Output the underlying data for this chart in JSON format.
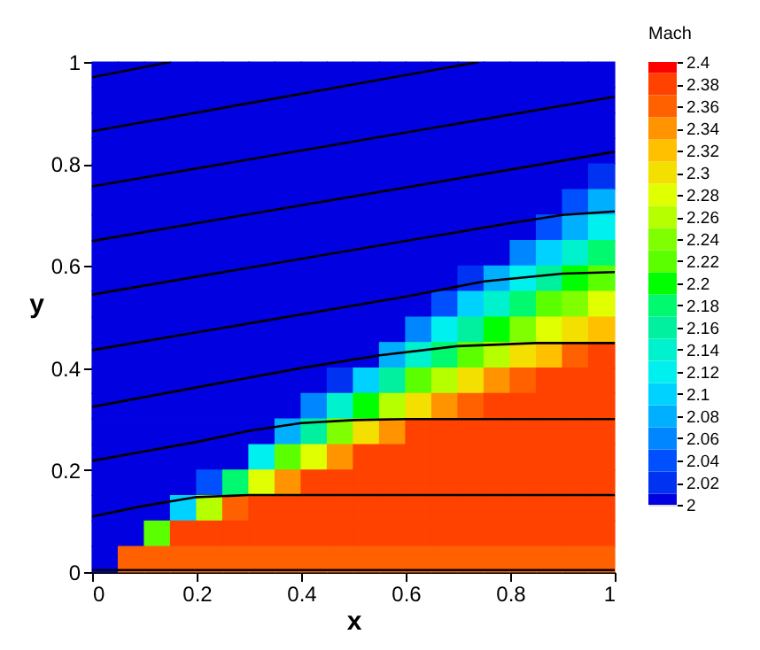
{
  "chart_data": {
    "type": "heatmap",
    "xlabel": "x",
    "ylabel": "y",
    "clabel": "Mach",
    "xlim": [
      0,
      1
    ],
    "ylim": [
      0,
      1
    ],
    "xticks": [
      0,
      0.2,
      0.4,
      0.6,
      0.8,
      1
    ],
    "yticks": [
      0,
      0.2,
      0.4,
      0.6,
      0.8,
      1
    ],
    "clim": [
      2,
      2.4
    ],
    "cticks": [
      2,
      2.02,
      2.04,
      2.06,
      2.08,
      2.1,
      2.12,
      2.14,
      2.16,
      2.18,
      2.2,
      2.22,
      2.24,
      2.26,
      2.28,
      2.3,
      2.32,
      2.34,
      2.36,
      2.38,
      2.4
    ],
    "grid": false,
    "cells": [
      [
        2.0,
        2.0,
        2.0,
        2.0,
        2.0,
        2.0,
        2.0,
        2.0,
        2.0,
        2.0,
        2.0,
        2.0,
        2.0,
        2.0,
        2.0,
        2.0,
        2.0,
        2.0,
        2.0,
        2.0
      ],
      [
        2.0,
        2.0,
        2.0,
        2.0,
        2.0,
        2.0,
        2.0,
        2.0,
        2.0,
        2.0,
        2.0,
        2.0,
        2.0,
        2.0,
        2.0,
        2.0,
        2.0,
        2.0,
        2.0,
        2.0
      ],
      [
        2.0,
        2.0,
        2.0,
        2.0,
        2.0,
        2.0,
        2.0,
        2.0,
        2.0,
        2.0,
        2.0,
        2.0,
        2.0,
        2.0,
        2.0,
        2.0,
        2.0,
        2.0,
        2.0,
        2.0
      ],
      [
        2.0,
        2.0,
        2.0,
        2.0,
        2.0,
        2.0,
        2.0,
        2.0,
        2.0,
        2.0,
        2.0,
        2.0,
        2.0,
        2.0,
        2.0,
        2.0,
        2.0,
        2.0,
        2.0,
        2.0
      ],
      [
        2.0,
        2.0,
        2.0,
        2.0,
        2.0,
        2.0,
        2.0,
        2.0,
        2.0,
        2.0,
        2.0,
        2.0,
        2.0,
        2.0,
        2.0,
        2.0,
        2.0,
        2.0,
        2.0,
        2.02
      ],
      [
        2.0,
        2.0,
        2.0,
        2.0,
        2.0,
        2.0,
        2.0,
        2.0,
        2.0,
        2.0,
        2.0,
        2.0,
        2.0,
        2.0,
        2.0,
        2.0,
        2.0,
        2.0,
        2.04,
        2.08
      ],
      [
        2.0,
        2.0,
        2.0,
        2.0,
        2.0,
        2.0,
        2.0,
        2.0,
        2.0,
        2.0,
        2.0,
        2.0,
        2.0,
        2.0,
        2.0,
        2.0,
        2.0,
        2.04,
        2.08,
        2.12
      ],
      [
        2.0,
        2.0,
        2.0,
        2.0,
        2.0,
        2.0,
        2.0,
        2.0,
        2.0,
        2.0,
        2.0,
        2.0,
        2.0,
        2.0,
        2.0,
        2.0,
        2.06,
        2.1,
        2.14,
        2.18
      ],
      [
        2.0,
        2.0,
        2.0,
        2.0,
        2.0,
        2.0,
        2.0,
        2.0,
        2.0,
        2.0,
        2.0,
        2.0,
        2.0,
        2.0,
        2.02,
        2.08,
        2.12,
        2.16,
        2.2,
        2.22
      ],
      [
        2.0,
        2.0,
        2.0,
        2.0,
        2.0,
        2.0,
        2.0,
        2.0,
        2.0,
        2.0,
        2.0,
        2.0,
        2.0,
        2.04,
        2.1,
        2.14,
        2.18,
        2.22,
        2.24,
        2.28
      ],
      [
        2.0,
        2.0,
        2.0,
        2.0,
        2.0,
        2.0,
        2.0,
        2.0,
        2.0,
        2.0,
        2.0,
        2.0,
        2.06,
        2.12,
        2.16,
        2.2,
        2.24,
        2.28,
        2.3,
        2.32
      ],
      [
        2.0,
        2.0,
        2.0,
        2.0,
        2.0,
        2.0,
        2.0,
        2.0,
        2.0,
        2.0,
        2.0,
        2.08,
        2.14,
        2.18,
        2.22,
        2.26,
        2.3,
        2.32,
        2.36,
        2.38
      ],
      [
        2.0,
        2.0,
        2.0,
        2.0,
        2.0,
        2.0,
        2.0,
        2.0,
        2.0,
        2.02,
        2.1,
        2.16,
        2.22,
        2.26,
        2.3,
        2.34,
        2.36,
        2.38,
        2.38,
        2.38
      ],
      [
        2.0,
        2.0,
        2.0,
        2.0,
        2.0,
        2.0,
        2.0,
        2.0,
        2.06,
        2.14,
        2.2,
        2.26,
        2.3,
        2.34,
        2.36,
        2.38,
        2.38,
        2.38,
        2.38,
        2.38
      ],
      [
        2.0,
        2.0,
        2.0,
        2.0,
        2.0,
        2.0,
        2.0,
        2.08,
        2.16,
        2.24,
        2.3,
        2.34,
        2.38,
        2.38,
        2.38,
        2.38,
        2.38,
        2.38,
        2.38,
        2.38
      ],
      [
        2.0,
        2.0,
        2.0,
        2.0,
        2.0,
        2.0,
        2.12,
        2.22,
        2.28,
        2.34,
        2.38,
        2.38,
        2.38,
        2.38,
        2.38,
        2.38,
        2.38,
        2.38,
        2.38,
        2.38
      ],
      [
        2.0,
        2.0,
        2.0,
        2.0,
        2.04,
        2.18,
        2.28,
        2.34,
        2.38,
        2.38,
        2.38,
        2.38,
        2.38,
        2.38,
        2.38,
        2.38,
        2.38,
        2.38,
        2.38,
        2.38
      ],
      [
        2.0,
        2.0,
        2.0,
        2.1,
        2.26,
        2.36,
        2.38,
        2.38,
        2.38,
        2.38,
        2.38,
        2.38,
        2.38,
        2.38,
        2.38,
        2.38,
        2.38,
        2.38,
        2.38,
        2.38
      ],
      [
        2.0,
        2.0,
        2.22,
        2.38,
        2.38,
        2.38,
        2.38,
        2.38,
        2.38,
        2.38,
        2.38,
        2.38,
        2.38,
        2.38,
        2.38,
        2.38,
        2.38,
        2.38,
        2.38,
        2.38
      ],
      [
        2.0,
        2.36,
        2.36,
        2.36,
        2.36,
        2.36,
        2.36,
        2.36,
        2.36,
        2.36,
        2.36,
        2.36,
        2.36,
        2.36,
        2.36,
        2.36,
        2.36,
        2.36,
        2.36,
        2.36
      ]
    ],
    "series": [
      {
        "type": "line",
        "color": "#000000",
        "x": [
          0,
          0.15
        ],
        "values": [
          0.97,
          1.0
        ]
      },
      {
        "type": "line",
        "color": "#000000",
        "x": [
          0,
          0.74
        ],
        "values": [
          0.864,
          1.0
        ]
      },
      {
        "type": "line",
        "color": "#000000",
        "x": [
          0,
          1
        ],
        "values": [
          0.756,
          0.932
        ]
      },
      {
        "type": "line",
        "color": "#000000",
        "x": [
          0,
          1
        ],
        "values": [
          0.649,
          0.824
        ]
      },
      {
        "type": "line",
        "color": "#000000",
        "x": [
          0,
          0.8,
          0.9,
          1
        ],
        "values": [
          0.544,
          0.684,
          0.7,
          0.707
        ]
      },
      {
        "type": "line",
        "color": "#000000",
        "x": [
          0,
          0.6,
          0.75,
          0.9,
          1
        ],
        "values": [
          0.435,
          0.54,
          0.57,
          0.585,
          0.588
        ]
      },
      {
        "type": "line",
        "color": "#000000",
        "x": [
          0,
          0.4,
          0.55,
          0.7,
          0.85,
          1
        ],
        "values": [
          0.324,
          0.4,
          0.425,
          0.443,
          0.449,
          0.449
        ]
      },
      {
        "type": "line",
        "color": "#000000",
        "x": [
          0,
          0.2,
          0.3,
          0.4,
          0.5,
          0.6,
          1
        ],
        "values": [
          0.218,
          0.255,
          0.277,
          0.292,
          0.298,
          0.3,
          0.3
        ]
      },
      {
        "type": "line",
        "color": "#000000",
        "x": [
          0,
          0.1,
          0.2,
          0.3,
          1
        ],
        "values": [
          0.109,
          0.13,
          0.147,
          0.151,
          0.151
        ]
      },
      {
        "type": "line",
        "color": "#000000",
        "x": [
          0,
          1
        ],
        "values": [
          0.004,
          0.004
        ]
      }
    ]
  }
}
